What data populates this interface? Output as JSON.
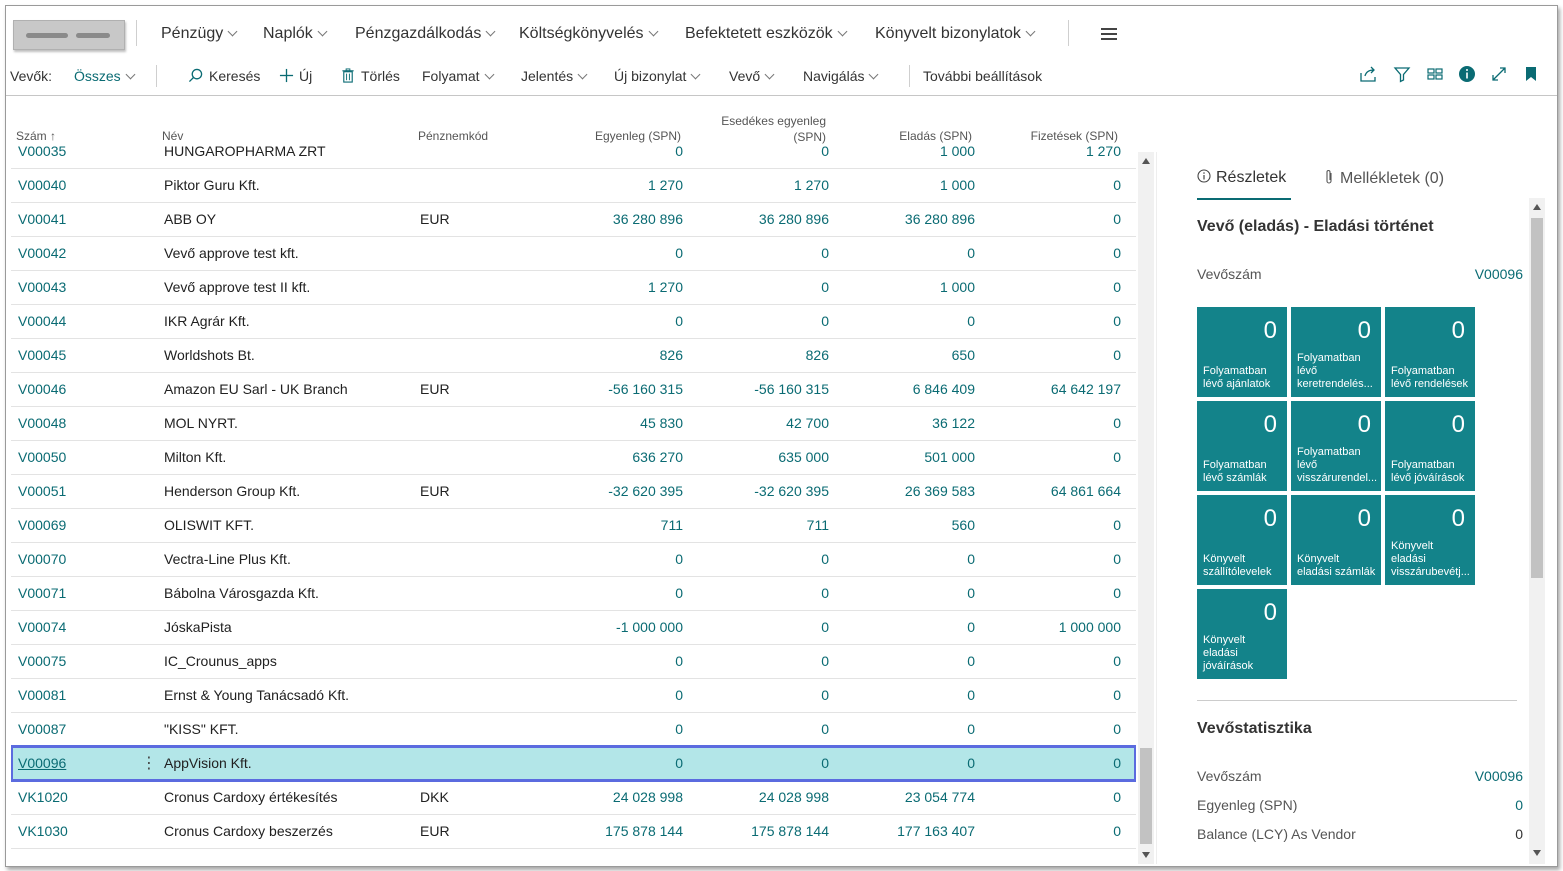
{
  "nav": {
    "items": [
      {
        "label": "Pénzügy"
      },
      {
        "label": "Naplók"
      },
      {
        "label": "Pénzgazdálkodás"
      },
      {
        "label": "Költségkönyvelés"
      },
      {
        "label": "Befektetett eszközök"
      },
      {
        "label": "Könyvelt bizonylatok"
      }
    ],
    "menu_icon": "hamburger-icon"
  },
  "actionbar": {
    "view_label": "Vevők:",
    "view_value": "Összes",
    "search": "Keresés",
    "new": "Új",
    "delete": "Törlés",
    "process": "Folyamat",
    "report": "Jelentés",
    "new_document": "Új bizonylat",
    "customer": "Vevő",
    "navigate": "Navigálás",
    "more": "További beállítások"
  },
  "columns": {
    "no": "Szám",
    "name": "Név",
    "currency": "Pénznemkód",
    "balance": "Egyenleg (SPN)",
    "due_line1": "Esedékes egyenleg",
    "due_line2": "(SPN)",
    "sales": "Eladás (SPN)",
    "payments": "Fizetések (SPN)"
  },
  "rows": [
    {
      "no": "V00035",
      "name": "HUNGAROPHARMA ZRT",
      "cur": "",
      "bal": "0",
      "due": "0",
      "sales": "1 000",
      "pay": "1 270"
    },
    {
      "no": "V00040",
      "name": "Piktor Guru Kft.",
      "cur": "",
      "bal": "1 270",
      "due": "1 270",
      "sales": "1 000",
      "pay": "0"
    },
    {
      "no": "V00041",
      "name": "ABB OY",
      "cur": "EUR",
      "bal": "36 280 896",
      "due": "36 280 896",
      "sales": "36 280 896",
      "pay": "0"
    },
    {
      "no": "V00042",
      "name": "Vevő approve test kft.",
      "cur": "",
      "bal": "0",
      "due": "0",
      "sales": "0",
      "pay": "0"
    },
    {
      "no": "V00043",
      "name": "Vevő approve test II kft.",
      "cur": "",
      "bal": "1 270",
      "due": "0",
      "sales": "1 000",
      "pay": "0"
    },
    {
      "no": "V00044",
      "name": "IKR Agrár Kft.",
      "cur": "",
      "bal": "0",
      "due": "0",
      "sales": "0",
      "pay": "0"
    },
    {
      "no": "V00045",
      "name": "Worldshots Bt.",
      "cur": "",
      "bal": "826",
      "due": "826",
      "sales": "650",
      "pay": "0"
    },
    {
      "no": "V00046",
      "name": "Amazon EU Sarl - UK Branch",
      "cur": "EUR",
      "bal": "-56 160 315",
      "due": "-56 160 315",
      "sales": "6 846 409",
      "pay": "64 642 197"
    },
    {
      "no": "V00048",
      "name": "MOL NYRT.",
      "cur": "",
      "bal": "45 830",
      "due": "42 700",
      "sales": "36 122",
      "pay": "0"
    },
    {
      "no": "V00050",
      "name": "Milton Kft.",
      "cur": "",
      "bal": "636 270",
      "due": "635 000",
      "sales": "501 000",
      "pay": "0"
    },
    {
      "no": "V00051",
      "name": "Henderson Group Kft.",
      "cur": "EUR",
      "bal": "-32 620 395",
      "due": "-32 620 395",
      "sales": "26 369 583",
      "pay": "64 861 664"
    },
    {
      "no": "V00069",
      "name": "OLISWIT KFT.",
      "cur": "",
      "bal": "711",
      "due": "711",
      "sales": "560",
      "pay": "0"
    },
    {
      "no": "V00070",
      "name": "Vectra-Line Plus Kft.",
      "cur": "",
      "bal": "0",
      "due": "0",
      "sales": "0",
      "pay": "0"
    },
    {
      "no": "V00071",
      "name": "Bábolna Városgazda Kft.",
      "cur": "",
      "bal": "0",
      "due": "0",
      "sales": "0",
      "pay": "0"
    },
    {
      "no": "V00074",
      "name": "JóskaPista",
      "cur": "",
      "bal": "-1 000 000",
      "due": "0",
      "sales": "0",
      "pay": "1 000 000"
    },
    {
      "no": "V00075",
      "name": "IC_Crounus_apps",
      "cur": "",
      "bal": "0",
      "due": "0",
      "sales": "0",
      "pay": "0"
    },
    {
      "no": "V00081",
      "name": "Ernst & Young Tanácsadó Kft.",
      "cur": "",
      "bal": "0",
      "due": "0",
      "sales": "0",
      "pay": "0"
    },
    {
      "no": "V00087",
      "name": "\"KISS\" KFT.",
      "cur": "",
      "bal": "0",
      "due": "0",
      "sales": "0",
      "pay": "0"
    },
    {
      "no": "V00096",
      "name": "AppVision Kft.",
      "cur": "",
      "bal": "0",
      "due": "0",
      "sales": "0",
      "pay": "0",
      "selected": true
    },
    {
      "no": "VK1020",
      "name": "Cronus Cardoxy értékesítés",
      "cur": "DKK",
      "bal": "24 028 998",
      "due": "24 028 998",
      "sales": "23 054 774",
      "pay": "0"
    },
    {
      "no": "VK1030",
      "name": "Cronus Cardoxy beszerzés",
      "cur": "EUR",
      "bal": "175 878 144",
      "due": "175 878 144",
      "sales": "177 163 407",
      "pay": "0"
    }
  ],
  "factbox": {
    "tab_details": "Részletek",
    "tab_attachments": "Mellékletek (0)",
    "history_title": "Vevő (eladás) - Eladási történet",
    "customer_no_label": "Vevőszám",
    "customer_no_value": "V00096",
    "tiles": [
      {
        "value": "0",
        "label": "Folyamatban lévő ajánlatok"
      },
      {
        "value": "0",
        "label": "Folyamatban lévő keretrendelés..."
      },
      {
        "value": "0",
        "label": "Folyamatban lévő rendelések"
      },
      {
        "value": "0",
        "label": "Folyamatban lévő számlák"
      },
      {
        "value": "0",
        "label": "Folyamatban lévő visszárurendel..."
      },
      {
        "value": "0",
        "label": "Folyamatban lévő jóváírások"
      },
      {
        "value": "0",
        "label": "Könyvelt szállítólevelek"
      },
      {
        "value": "0",
        "label": "Könyvelt eladási számlák"
      },
      {
        "value": "0",
        "label": "Könyvelt eladási visszárubevétj..."
      },
      {
        "value": "0",
        "label": "Könyvelt eladási jóváírások"
      }
    ],
    "stats_title": "Vevőstatisztika",
    "stats": [
      {
        "label": "Vevőszám",
        "value": "V00096",
        "link": true
      },
      {
        "label": "Egyenleg (SPN)",
        "value": "0",
        "link": true
      },
      {
        "label": "Balance (LCY) As Vendor",
        "value": "0",
        "link": false
      }
    ]
  },
  "colors": {
    "accent": "#0a6b73",
    "tile": "#13838a",
    "selected_row": "#b3e6e8",
    "selection_border": "#5b6bdf"
  }
}
